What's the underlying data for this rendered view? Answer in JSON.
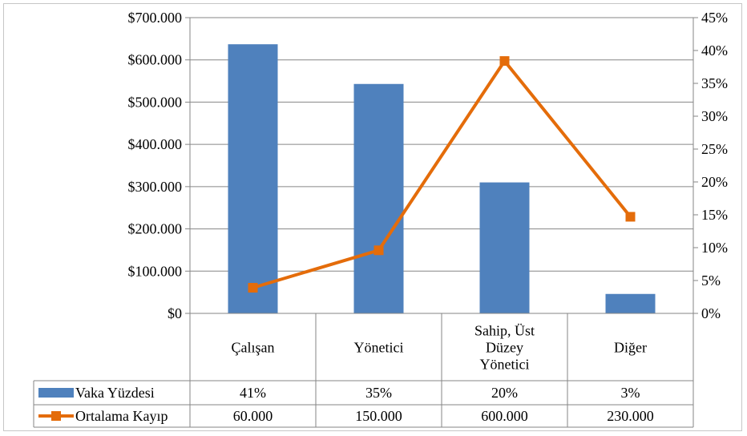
{
  "chart_data": {
    "type": "bar",
    "categories": [
      [
        "Çalışan"
      ],
      [
        "Yönetici"
      ],
      [
        "Sahip, Üst",
        "Düzey",
        "Yönetici"
      ],
      [
        "Diğer"
      ]
    ],
    "category_labels": [
      "Çalışan",
      "Yönetici",
      "Sahip, Üst Düzey Yönetici",
      "Diğer"
    ],
    "left_axis": {
      "min": 0,
      "max": 700000,
      "step": 100000,
      "tick_labels": [
        "$0",
        "$100.000",
        "$200.000",
        "$300.000",
        "$400.000",
        "$500.000",
        "$600.000",
        "$700.000"
      ]
    },
    "right_axis": {
      "min": 0,
      "max": 45,
      "step": 5,
      "tick_labels": [
        "0%",
        "5%",
        "10%",
        "15%",
        "20%",
        "25%",
        "30%",
        "35%",
        "40%",
        "45%"
      ]
    },
    "series": [
      {
        "name": "Vaka Yüzdesi",
        "type": "bar",
        "axis": "left",
        "values": [
          637000,
          543000,
          310000,
          46000
        ],
        "color": "#4f81bd"
      },
      {
        "name": "Ortalama Kayıp",
        "type": "line",
        "axis": "right",
        "values": [
          3.9,
          9.6,
          38.4,
          14.7
        ],
        "color": "#e46c0a"
      }
    ],
    "data_table": {
      "rows": [
        {
          "series": "Vaka Yüzdesi",
          "cells": [
            "41%",
            "35%",
            "20%",
            "3%"
          ]
        },
        {
          "series": "Ortalama Kayıp",
          "cells": [
            "60.000",
            "150.000",
            "600.000",
            "230.000"
          ]
        }
      ]
    },
    "grid": true,
    "legend": "data-table"
  }
}
